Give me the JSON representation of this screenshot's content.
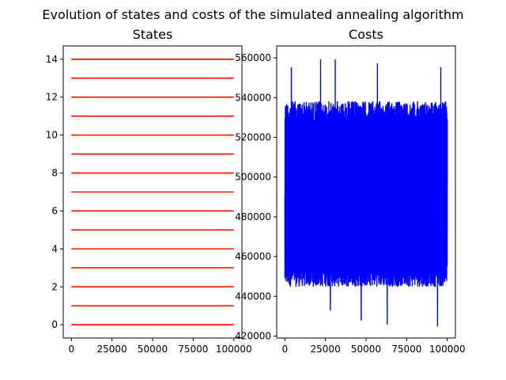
{
  "figure": {
    "suptitle": "Evolution of states and costs of the simulated annealing algorithm"
  },
  "chart_data": [
    {
      "type": "line",
      "title": "States",
      "xlabel": "",
      "ylabel": "",
      "xlim": [
        -5000,
        105000
      ],
      "ylim": [
        -0.7,
        14.7
      ],
      "xticks": [
        0,
        25000,
        50000,
        75000,
        100000
      ],
      "xtick_labels": [
        "0",
        "25000",
        "50000",
        "75000",
        "100000"
      ],
      "yticks": [
        0,
        2,
        4,
        6,
        8,
        10,
        12,
        14
      ],
      "ytick_labels": [
        "0",
        "2",
        "4",
        "6",
        "8",
        "10",
        "12",
        "14"
      ],
      "grid": false,
      "line_color": "#ff0000",
      "x_range": [
        0,
        100000
      ],
      "series": [
        {
          "values": [
            0,
            0
          ]
        },
        {
          "values": [
            1,
            1
          ]
        },
        {
          "values": [
            2,
            2
          ]
        },
        {
          "values": [
            3,
            3
          ]
        },
        {
          "values": [
            4,
            4
          ]
        },
        {
          "values": [
            5,
            5
          ]
        },
        {
          "values": [
            6,
            6
          ]
        },
        {
          "values": [
            7,
            7
          ]
        },
        {
          "values": [
            8,
            8
          ]
        },
        {
          "values": [
            9,
            9
          ]
        },
        {
          "values": [
            10,
            10
          ]
        },
        {
          "values": [
            11,
            11
          ]
        },
        {
          "values": [
            12,
            12
          ]
        },
        {
          "values": [
            13,
            13
          ]
        },
        {
          "values": [
            14,
            14
          ]
        }
      ]
    },
    {
      "type": "line",
      "title": "Costs",
      "xlabel": "",
      "ylabel": "",
      "xlim": [
        -5000,
        105000
      ],
      "ylim": [
        419000,
        566000
      ],
      "xticks": [
        0,
        25000,
        50000,
        75000,
        100000
      ],
      "xtick_labels": [
        "0",
        "25000",
        "50000",
        "75000",
        "100000"
      ],
      "yticks": [
        420000,
        440000,
        460000,
        480000,
        500000,
        520000,
        540000,
        560000
      ],
      "ytick_labels": [
        "420000",
        "440000",
        "460000",
        "480000",
        "500000",
        "520000",
        "540000",
        "560000"
      ],
      "grid": false,
      "line_color": "#0000ff",
      "x_range": [
        0,
        100000
      ],
      "center": 490000,
      "typical_range": [
        445000,
        538000
      ],
      "extremes": [
        {
          "x": 4000,
          "y": 555000
        },
        {
          "x": 22000,
          "y": 559000
        },
        {
          "x": 31000,
          "y": 559000
        },
        {
          "x": 57000,
          "y": 557000
        },
        {
          "x": 96000,
          "y": 555000
        },
        {
          "x": 28000,
          "y": 433000
        },
        {
          "x": 47000,
          "y": 428000
        },
        {
          "x": 63000,
          "y": 426000
        },
        {
          "x": 94000,
          "y": 425000
        }
      ]
    }
  ]
}
